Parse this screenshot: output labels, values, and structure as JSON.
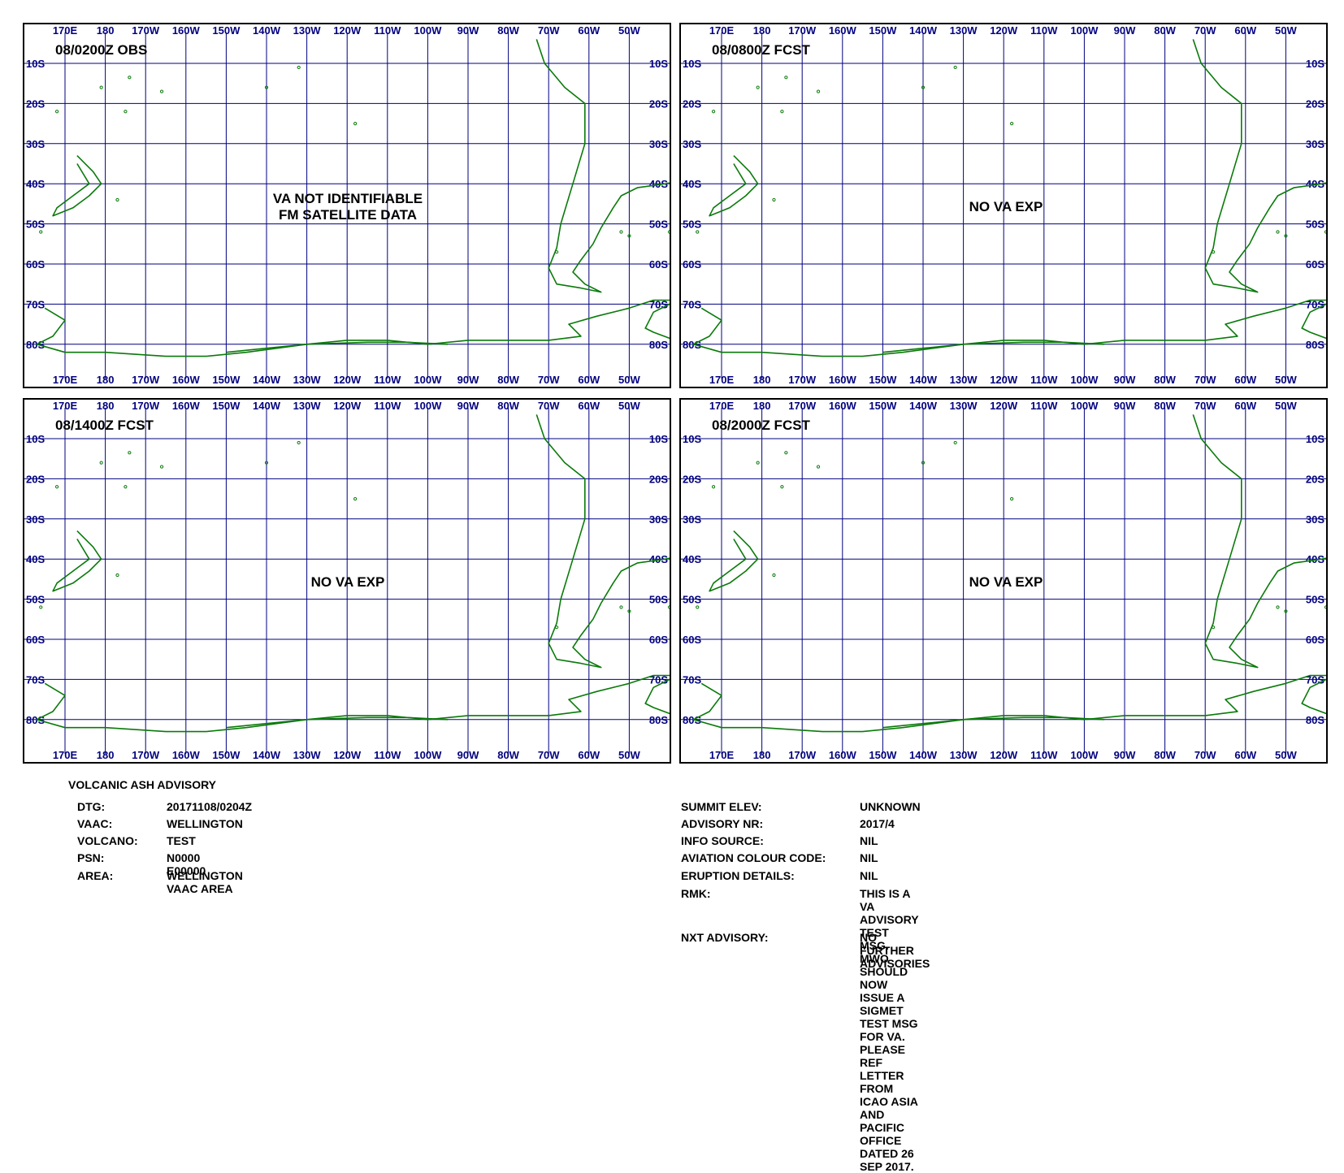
{
  "map": {
    "lon_labels": [
      "170E",
      "180",
      "170W",
      "160W",
      "150W",
      "140W",
      "130W",
      "120W",
      "110W",
      "100W",
      "90W",
      "80W",
      "70W",
      "60W",
      "50W"
    ],
    "lat_labels": [
      "10S",
      "20S",
      "30S",
      "40S",
      "50S",
      "60S",
      "70S",
      "80S"
    ],
    "grid_color": "#00007f",
    "coast_color": "#0a7a0a"
  },
  "panels": [
    {
      "title": "08/0200Z OBS",
      "status": "VA NOT IDENTIFIABLE\nFM SATELLITE DATA"
    },
    {
      "title": "08/0800Z FCST",
      "status": "NO VA EXP"
    },
    {
      "title": "08/1400Z FCST",
      "status": "NO VA EXP"
    },
    {
      "title": "08/2000Z FCST",
      "status": "NO VA EXP"
    }
  ],
  "advisory": {
    "heading": "VOLCANIC ASH ADVISORY",
    "left": [
      {
        "label": "DTG:",
        "value": "20171108/0204Z"
      },
      {
        "label": "VAAC:",
        "value": "WELLINGTON"
      },
      {
        "label": "VOLCANO:",
        "value": "TEST"
      },
      {
        "label": "PSN:",
        "value": "N0000 E00000"
      },
      {
        "label": "AREA:",
        "value": "WELLINGTON VAAC AREA"
      }
    ],
    "right": [
      {
        "label": "SUMMIT ELEV:",
        "value": "UNKNOWN"
      },
      {
        "label": "ADVISORY NR:",
        "value": "2017/4"
      },
      {
        "label": "INFO SOURCE:",
        "value": "NIL"
      },
      {
        "label": "AVIATION COLOUR CODE:",
        "value": "NIL"
      },
      {
        "label": "ERUPTION DETAILS:",
        "value": "NIL"
      },
      {
        "label": "RMK:",
        "value": "THIS IS A VA ADVISORY TEST MSG. MWO SHOULD NOW ISSUE A\nSIGMET TEST MSG FOR VA. PLEASE REF LETTER FROM ICAO ASIA\nAND PACIFIC OFFICE DATED 26 SEP 2017."
      },
      {
        "label": "NXT ADVISORY:",
        "value": "NO FURTHER ADVISORIES"
      }
    ]
  }
}
